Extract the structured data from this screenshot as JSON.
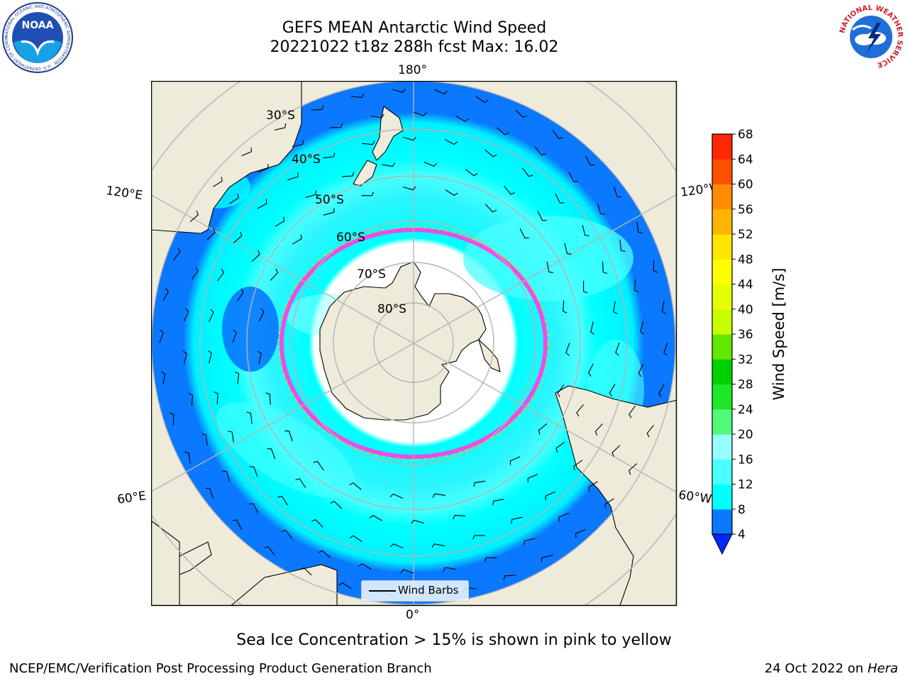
{
  "map": {
    "title": "GEFS MEAN Antarctic Wind Speed",
    "subtitle": "20221022 t18z 288h fcst   Max: 16.02",
    "lon_labels": {
      "top": "180°",
      "bottom": "0°",
      "upper_left": "120°E",
      "upper_right": "120°W",
      "lower_left": "60°E",
      "lower_right": "60°W"
    },
    "lat_labels": [
      "30°S",
      "40°S",
      "50°S",
      "60°S",
      "70°S",
      "80°S"
    ],
    "legend_label": "Wind Barbs",
    "caption": "Sea Ice Concentration > 15% is shown in pink to yellow",
    "projection": "south polar stereographic",
    "colors": {
      "land": "#efebdb",
      "ice": "#ffffff",
      "sea_ice_edge": "#ff3ce6",
      "grid": "#b4b4b4",
      "barbs": "#000000"
    }
  },
  "colorbar": {
    "label": "Wind Speed [m/s]",
    "ticks": [
      4,
      8,
      12,
      16,
      20,
      24,
      28,
      32,
      36,
      40,
      44,
      48,
      52,
      56,
      60,
      64,
      68
    ],
    "colors": [
      "#0a78ff",
      "#00ffff",
      "#4bffff",
      "#96ffff",
      "#50fa78",
      "#1ee628",
      "#00d200",
      "#64e600",
      "#c8ff00",
      "#e6ff00",
      "#ffff00",
      "#ffe600",
      "#ffb400",
      "#ff8c00",
      "#ff5000",
      "#ff2800"
    ],
    "under_color": "#0028ff"
  },
  "footer": {
    "left": "NCEP/EMC/Verification Post Processing Product Generation Branch",
    "right_prefix": "24 Oct 2022 on",
    "right_host": "Hera"
  },
  "logos": {
    "noaa": {
      "text": "NOAA",
      "ring_text": "NATIONAL OCEANIC AND ATMOSPHERIC ADMINISTRATION · U.S. DEPARTMENT OF COMMERCE"
    },
    "nws": {
      "ring_text": "NATIONAL WEATHER SERVICE"
    }
  }
}
